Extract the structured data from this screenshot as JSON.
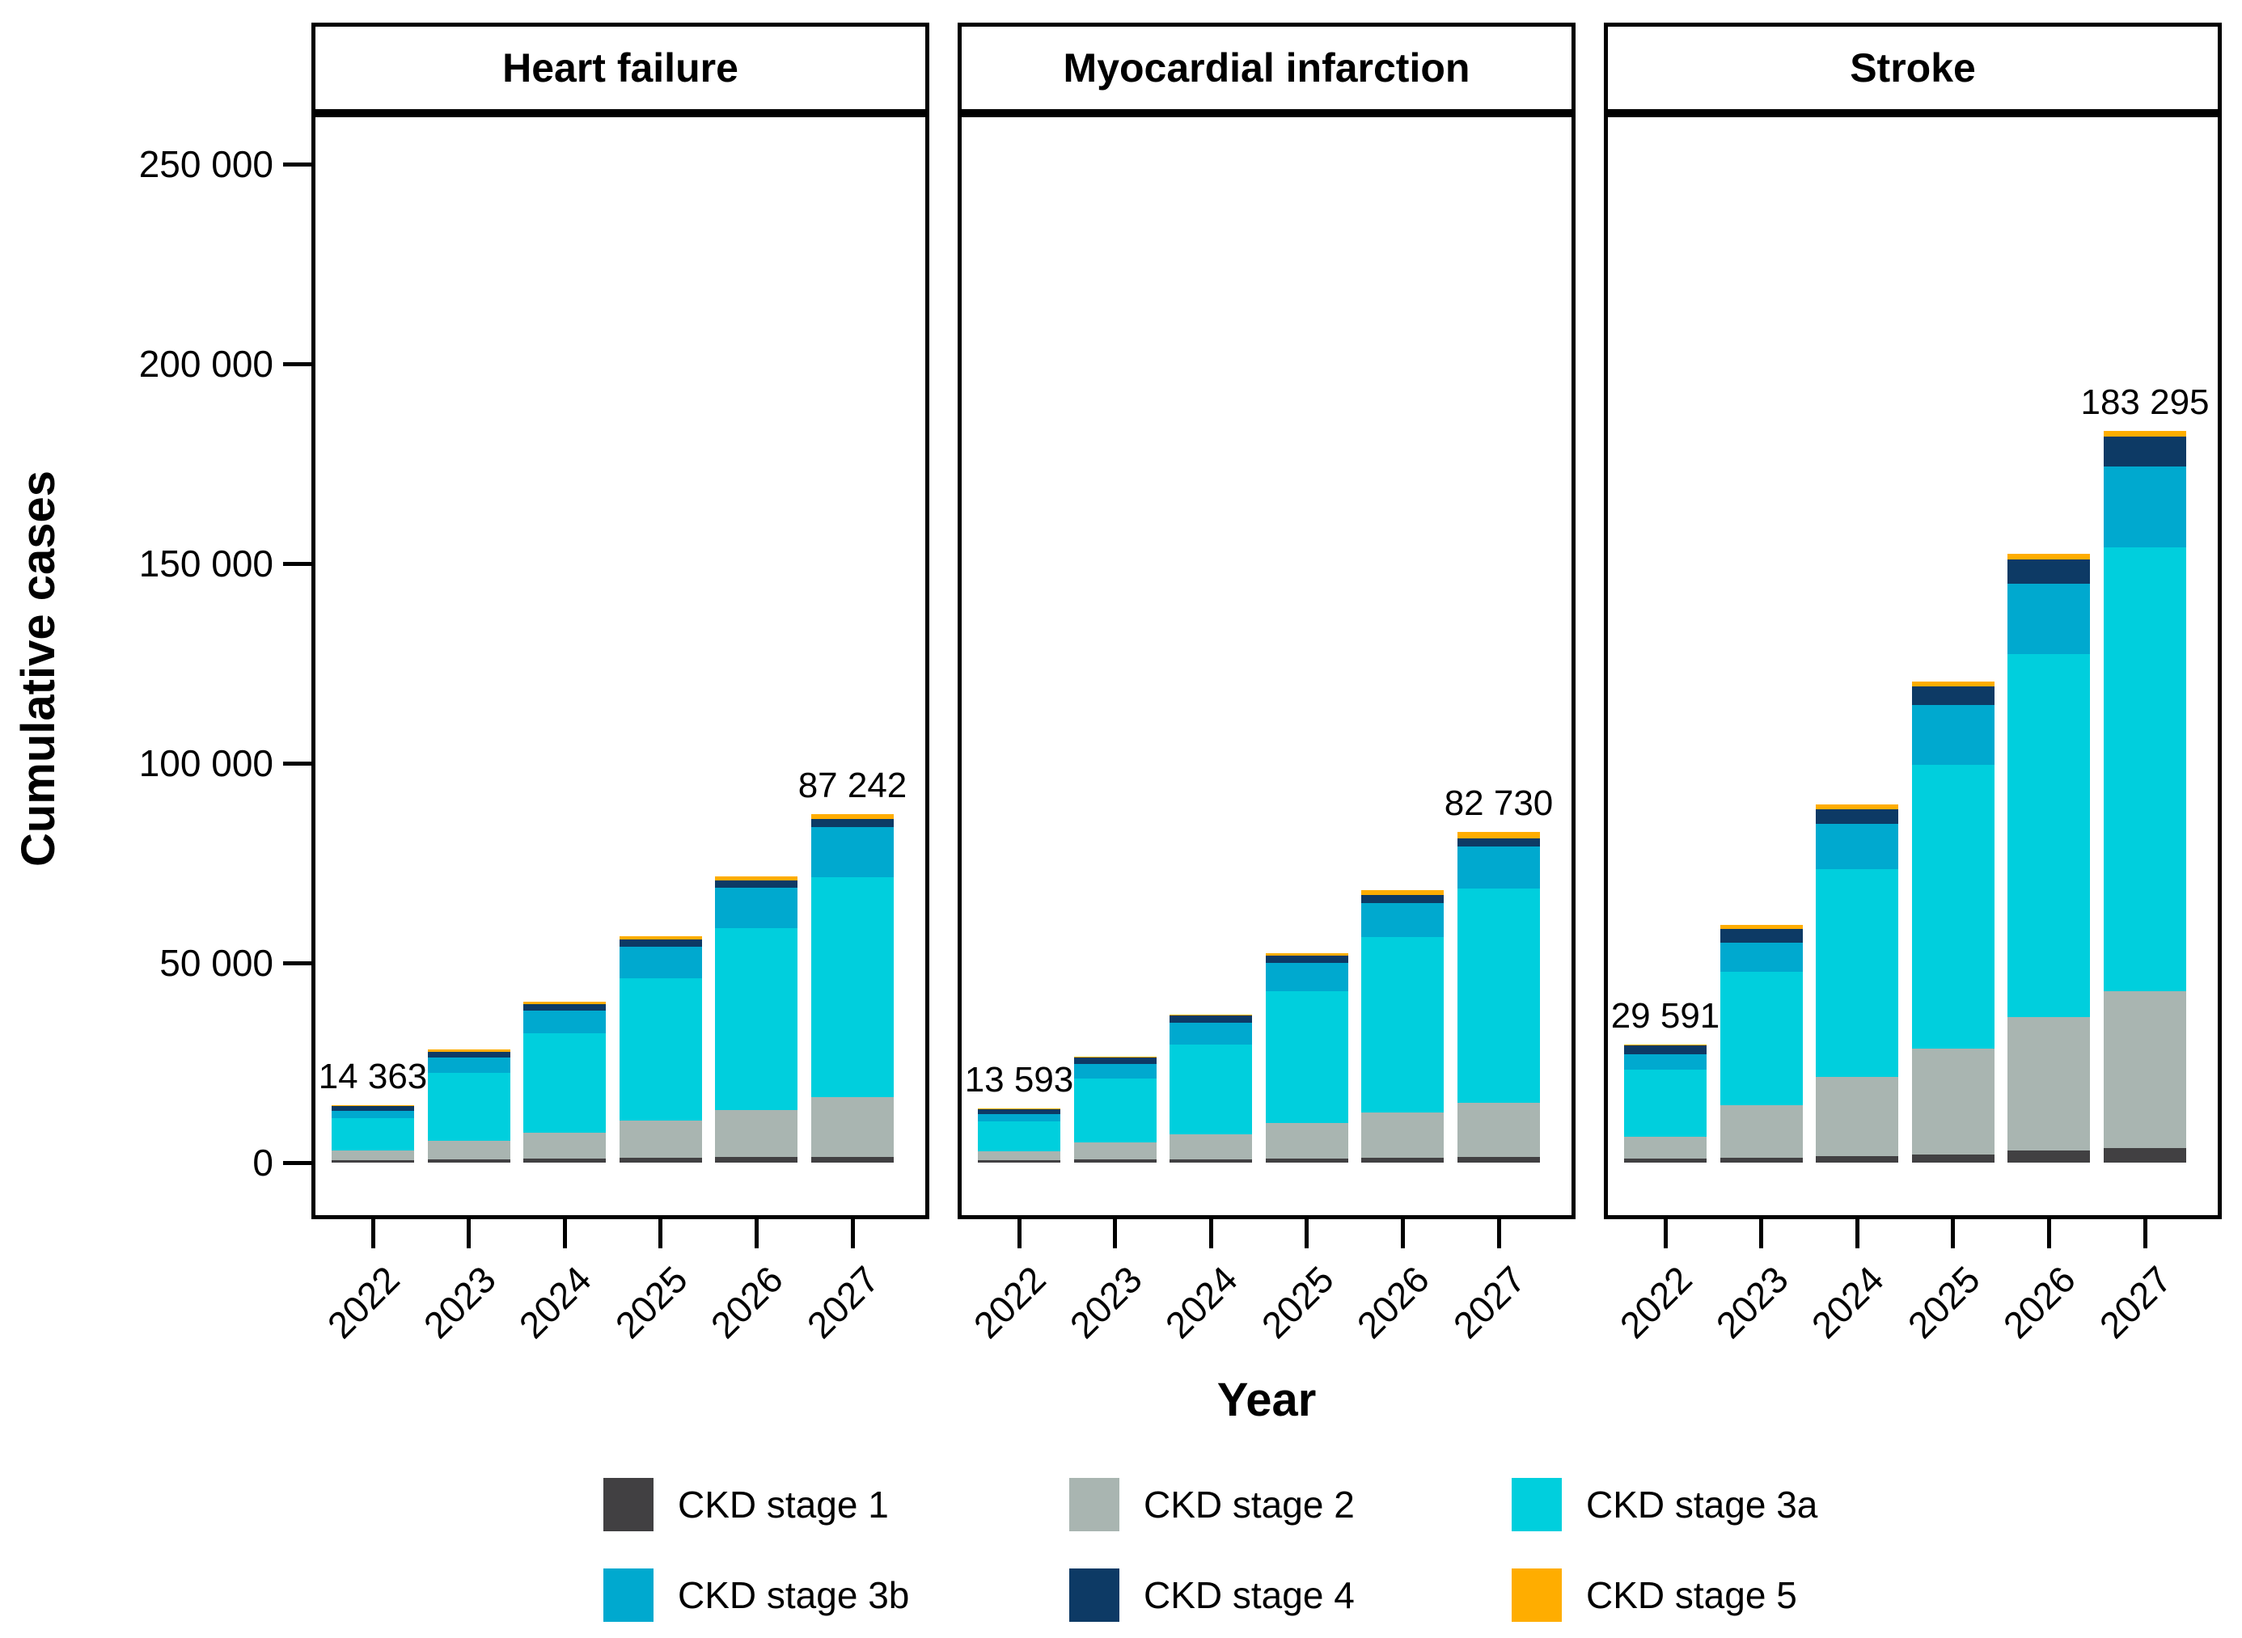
{
  "figure": {
    "y_axis_title": "Cumulative cases",
    "x_axis_title": "Year"
  },
  "colors": {
    "stage1": "#414042",
    "stage2": "#A9B5B1",
    "stage3a": "#00CFDD",
    "stage3b": "#00A9CF",
    "stage4": "#0D3A65",
    "stage5": "#FFAD00"
  },
  "legend": {
    "items": [
      {
        "key": "stage1",
        "label": "CKD stage 1"
      },
      {
        "key": "stage2",
        "label": "CKD stage 2"
      },
      {
        "key": "stage3a",
        "label": "CKD stage 3a"
      },
      {
        "key": "stage3b",
        "label": "CKD stage 3b"
      },
      {
        "key": "stage4",
        "label": "CKD stage 4"
      },
      {
        "key": "stage5",
        "label": "CKD stage 5"
      }
    ]
  },
  "chart_data": {
    "type": "bar",
    "stacked": true,
    "title": "",
    "xlabel": "Year",
    "ylabel": "Cumulative cases",
    "categories": [
      "2022",
      "2023",
      "2024",
      "2025",
      "2026",
      "2027"
    ],
    "ylim": [
      0,
      265000
    ],
    "grid": false,
    "legend_position": "bottom",
    "yticks": [
      {
        "value": 0,
        "label": "0"
      },
      {
        "value": 50000,
        "label": "50 000"
      },
      {
        "value": 100000,
        "label": "100 000"
      },
      {
        "value": 150000,
        "label": "150 000"
      },
      {
        "value": 200000,
        "label": "200 000"
      },
      {
        "value": 250000,
        "label": "250 000"
      }
    ],
    "stack_order": [
      "stage1",
      "stage2",
      "stage3a",
      "stage3b",
      "stage4",
      "stage5"
    ],
    "panels": [
      {
        "title": "Heart failure",
        "totals": [
          14363,
          28300,
          40300,
          56700,
          71700,
          87242
        ],
        "series": [
          {
            "name": "CKD stage 1",
            "key": "stage1",
            "values": [
              600,
              800,
              950,
              1150,
              1350,
              1500
            ]
          },
          {
            "name": "CKD stage 2",
            "key": "stage2",
            "values": [
              2350,
              4650,
              6600,
              9300,
              11900,
              14800
            ]
          },
          {
            "name": "CKD stage 3a",
            "key": "stage3a",
            "values": [
              8113,
              16950,
              24800,
              35750,
              45400,
              55242
            ]
          },
          {
            "name": "CKD stage 3b",
            "key": "stage3b",
            "values": [
              1900,
              3900,
              5700,
              7900,
              10100,
              12400
            ]
          },
          {
            "name": "CKD stage 4",
            "key": "stage4",
            "values": [
              1300,
              1500,
              1650,
              1800,
              1950,
              2100
            ]
          },
          {
            "name": "CKD stage 5",
            "key": "stage5",
            "values": [
              100,
              500,
              600,
              800,
              1000,
              1200
            ]
          }
        ],
        "annotations": [
          {
            "category": "2022",
            "label": "14 363"
          },
          {
            "category": "2027",
            "label": "87 242"
          }
        ]
      },
      {
        "title": "Myocardial infarction",
        "totals": [
          13593,
          26500,
          37100,
          52400,
          68200,
          82730
        ],
        "series": [
          {
            "name": "CKD stage 1",
            "key": "stage1",
            "values": [
              550,
              750,
              900,
              1100,
              1300,
              1450
            ]
          },
          {
            "name": "CKD stage 2",
            "key": "stage2",
            "values": [
              2250,
              4350,
              6200,
              8800,
              11300,
              13600
            ]
          },
          {
            "name": "CKD stage 3a",
            "key": "stage3a",
            "values": [
              7553,
              15900,
              22500,
              32950,
              43800,
              53600
            ]
          },
          {
            "name": "CKD stage 3b",
            "key": "stage3b",
            "values": [
              1800,
              3700,
              5500,
              7200,
              8600,
              10430
            ]
          },
          {
            "name": "CKD stage 4",
            "key": "stage4",
            "values": [
              1400,
              1550,
              1700,
              1850,
              2000,
              2150
            ]
          },
          {
            "name": "CKD stage 5",
            "key": "stage5",
            "values": [
              40,
              250,
              300,
              500,
              1200,
              1500
            ]
          }
        ],
        "annotations": [
          {
            "category": "2022",
            "label": "13 593"
          },
          {
            "category": "2027",
            "label": "82 730"
          }
        ]
      },
      {
        "title": "Stroke",
        "totals": [
          29591,
          59600,
          89600,
          120500,
          152500,
          183295
        ],
        "series": [
          {
            "name": "CKD stage 1",
            "key": "stage1",
            "values": [
              1000,
              1150,
              1600,
              2000,
              3000,
              3600
            ]
          },
          {
            "name": "CKD stage 2",
            "key": "stage2",
            "values": [
              5500,
              13300,
              19850,
              26500,
              33500,
              39400
            ]
          },
          {
            "name": "CKD stage 3a",
            "key": "stage3a",
            "values": [
              16811,
              33350,
              52050,
              71050,
              90900,
              110955
            ]
          },
          {
            "name": "CKD stage 3b",
            "key": "stage3b",
            "values": [
              3850,
              7300,
              11300,
              15000,
              17500,
              20240
            ]
          },
          {
            "name": "CKD stage 4",
            "key": "stage4",
            "values": [
              2400,
              3400,
              3600,
              4700,
              6200,
              7500
            ]
          },
          {
            "name": "CKD stage 5",
            "key": "stage5",
            "values": [
              30,
              1100,
              1200,
              1250,
              1400,
              1600
            ]
          }
        ],
        "annotations": [
          {
            "category": "2022",
            "label": "29 591"
          },
          {
            "category": "2027",
            "label": "183 295"
          }
        ]
      }
    ]
  }
}
